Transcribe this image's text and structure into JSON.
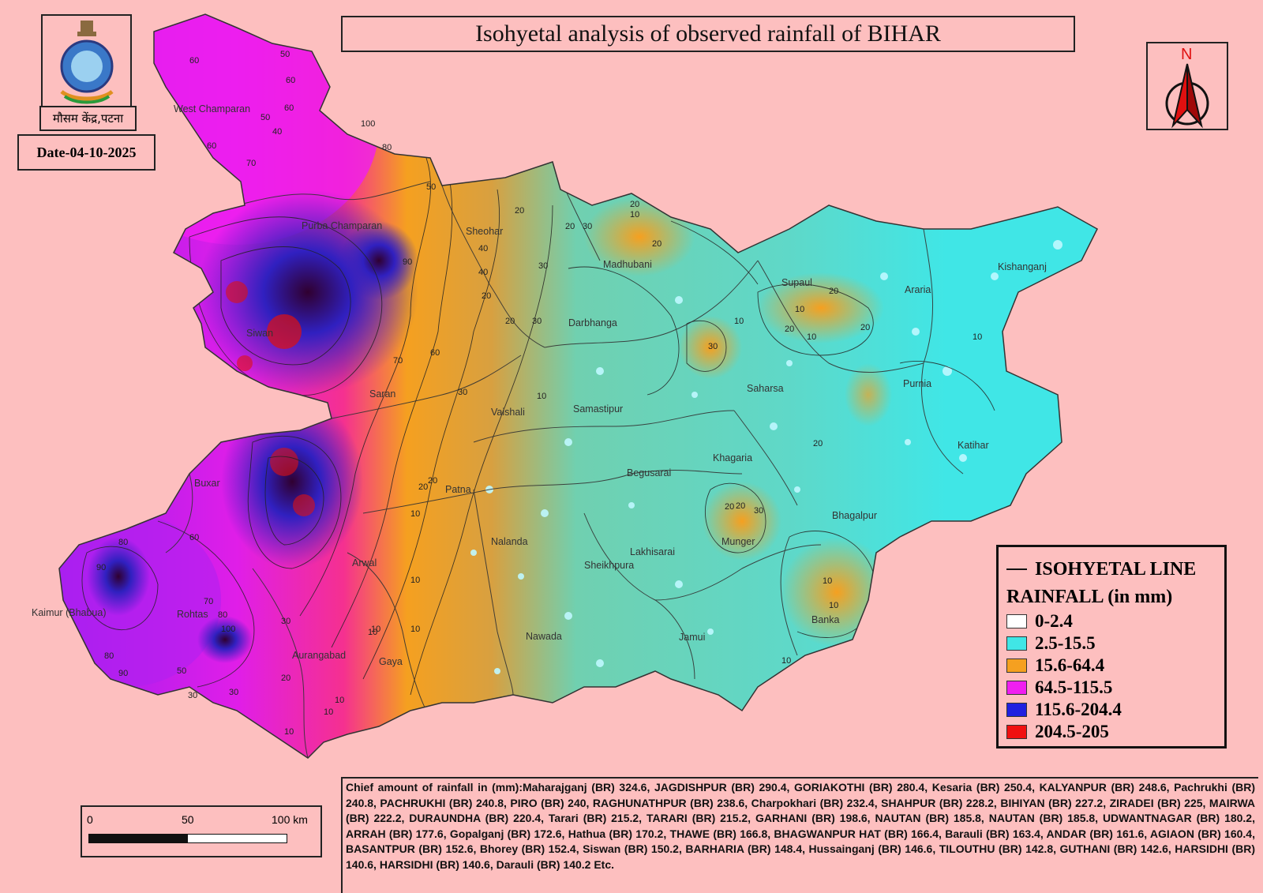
{
  "title": "Isohyetal analysis of observed rainfall of BIHAR",
  "office_label": "मौसम केंद्र,पटना",
  "date_label": "Date-04-10-2025",
  "north_label": "N",
  "colors": {
    "background": "#fdbfbf",
    "range_0_2_4": "#ffffff",
    "range_2_5_15_5": "#40e6e6",
    "range_15_6_64_4": "#f5a020",
    "range_64_5_115_5": "#f01ef0",
    "range_115_6_204_4": "#2020e0",
    "range_204_5_205": "#f01010"
  },
  "legend": {
    "line_label": "ISOHYETAL LINE",
    "rain_title": "RAINFALL (in mm)",
    "items": [
      {
        "label": "0-2.4",
        "color": "#ffffff"
      },
      {
        "label": "2.5-15.5",
        "color": "#40e6e6"
      },
      {
        "label": "15.6-64.4",
        "color": "#f5a020"
      },
      {
        "label": "64.5-115.5",
        "color": "#f01ef0"
      },
      {
        "label": "115.6-204.4",
        "color": "#2020e0"
      },
      {
        "label": "204.5-205",
        "color": "#f01010"
      }
    ]
  },
  "scale": {
    "zero": "0",
    "mid": "50",
    "end": "100 km"
  },
  "districts": [
    {
      "name": "West Champaran"
    },
    {
      "name": "Purba Champaran"
    },
    {
      "name": "Sheohar"
    },
    {
      "name": "Madhubani"
    },
    {
      "name": "Supaul"
    },
    {
      "name": "Araria"
    },
    {
      "name": "Kishanganj"
    },
    {
      "name": "Darbhanga"
    },
    {
      "name": "Saharsa"
    },
    {
      "name": "Purnia"
    },
    {
      "name": "Saran"
    },
    {
      "name": "Vaishali"
    },
    {
      "name": "Samastipur"
    },
    {
      "name": "Khagaria"
    },
    {
      "name": "Katihar"
    },
    {
      "name": "Begusarai"
    },
    {
      "name": "Buxar"
    },
    {
      "name": "Patna"
    },
    {
      "name": "Bhagalpur"
    },
    {
      "name": "Nalanda"
    },
    {
      "name": "Lakhisarai"
    },
    {
      "name": "Munger"
    },
    {
      "name": "Arwal"
    },
    {
      "name": "Sheikhpura"
    },
    {
      "name": "Kaimur (Bhabua)"
    },
    {
      "name": "Rohtas"
    },
    {
      "name": "Banka"
    },
    {
      "name": "Nawada"
    },
    {
      "name": "Jamui"
    },
    {
      "name": "Aurangabad"
    },
    {
      "name": "Gaya"
    },
    {
      "name": "Siwan"
    }
  ],
  "contour_labels": [
    "50",
    "60",
    "60",
    "50",
    "40",
    "60",
    "70",
    "100",
    "60",
    "80",
    "90",
    "50",
    "40",
    "30",
    "20",
    "20",
    "10",
    "20",
    "30",
    "40",
    "30",
    "20",
    "10",
    "10",
    "20",
    "20",
    "30",
    "10",
    "20",
    "20",
    "10",
    "20",
    "10",
    "10",
    "30",
    "20",
    "10",
    "10",
    "10",
    "60",
    "70",
    "80",
    "90",
    "70",
    "80",
    "60",
    "50",
    "30",
    "20",
    "30",
    "10",
    "10",
    "10",
    "20",
    "10",
    "10",
    "10",
    "20",
    "80",
    "90",
    "100",
    "30",
    "20",
    "30",
    "20",
    "10"
  ],
  "chief_amount": "Chief amount of rainfall in (mm):Maharajganj (BR) 324.6, JAGDISHPUR (BR) 290.4, GORIAKOTHI (BR) 280.4, Kesaria (BR) 250.4, KALYANPUR (BR) 248.6, Pachrukhi (BR) 240.8, PACHRUKHI (BR) 240.8, PIRO (BR) 240, RAGHUNATHPUR (BR) 238.6, Charpokhari (BR) 232.4, SHAHPUR (BR) 228.2, BIHIYAN (BR) 227.2, ZIRADEI (BR) 225, MAIRWA (BR) 222.2, DURAUNDHA (BR) 220.4, Tarari (BR) 215.2, TARARI (BR) 215.2, GARHANI (BR) 198.6, NAUTAN (BR) 185.8, NAUTAN (BR) 185.8, UDWANTNAGAR (BR) 180.2, ARRAH (BR) 177.6, Gopalganj (BR) 172.6, Hathua (BR) 170.2, THAWE (BR) 166.8, BHAGWANPUR HAT (BR) 166.4, Barauli (BR) 163.4, ANDAR (BR) 161.6, AGIAON (BR) 160.4, BASANTPUR (BR) 152.6, Bhorey (BR) 152.4, Siswan (BR) 150.2, BARHARIA (BR) 148.4, Hussainganj (BR) 146.6, TILOUTHU (BR) 142.8, GUTHANI (BR) 142.6, HARSIDHI (BR) 140.6, HARSIDHI (BR) 140.6, Darauli (BR) 140.2 Etc."
}
